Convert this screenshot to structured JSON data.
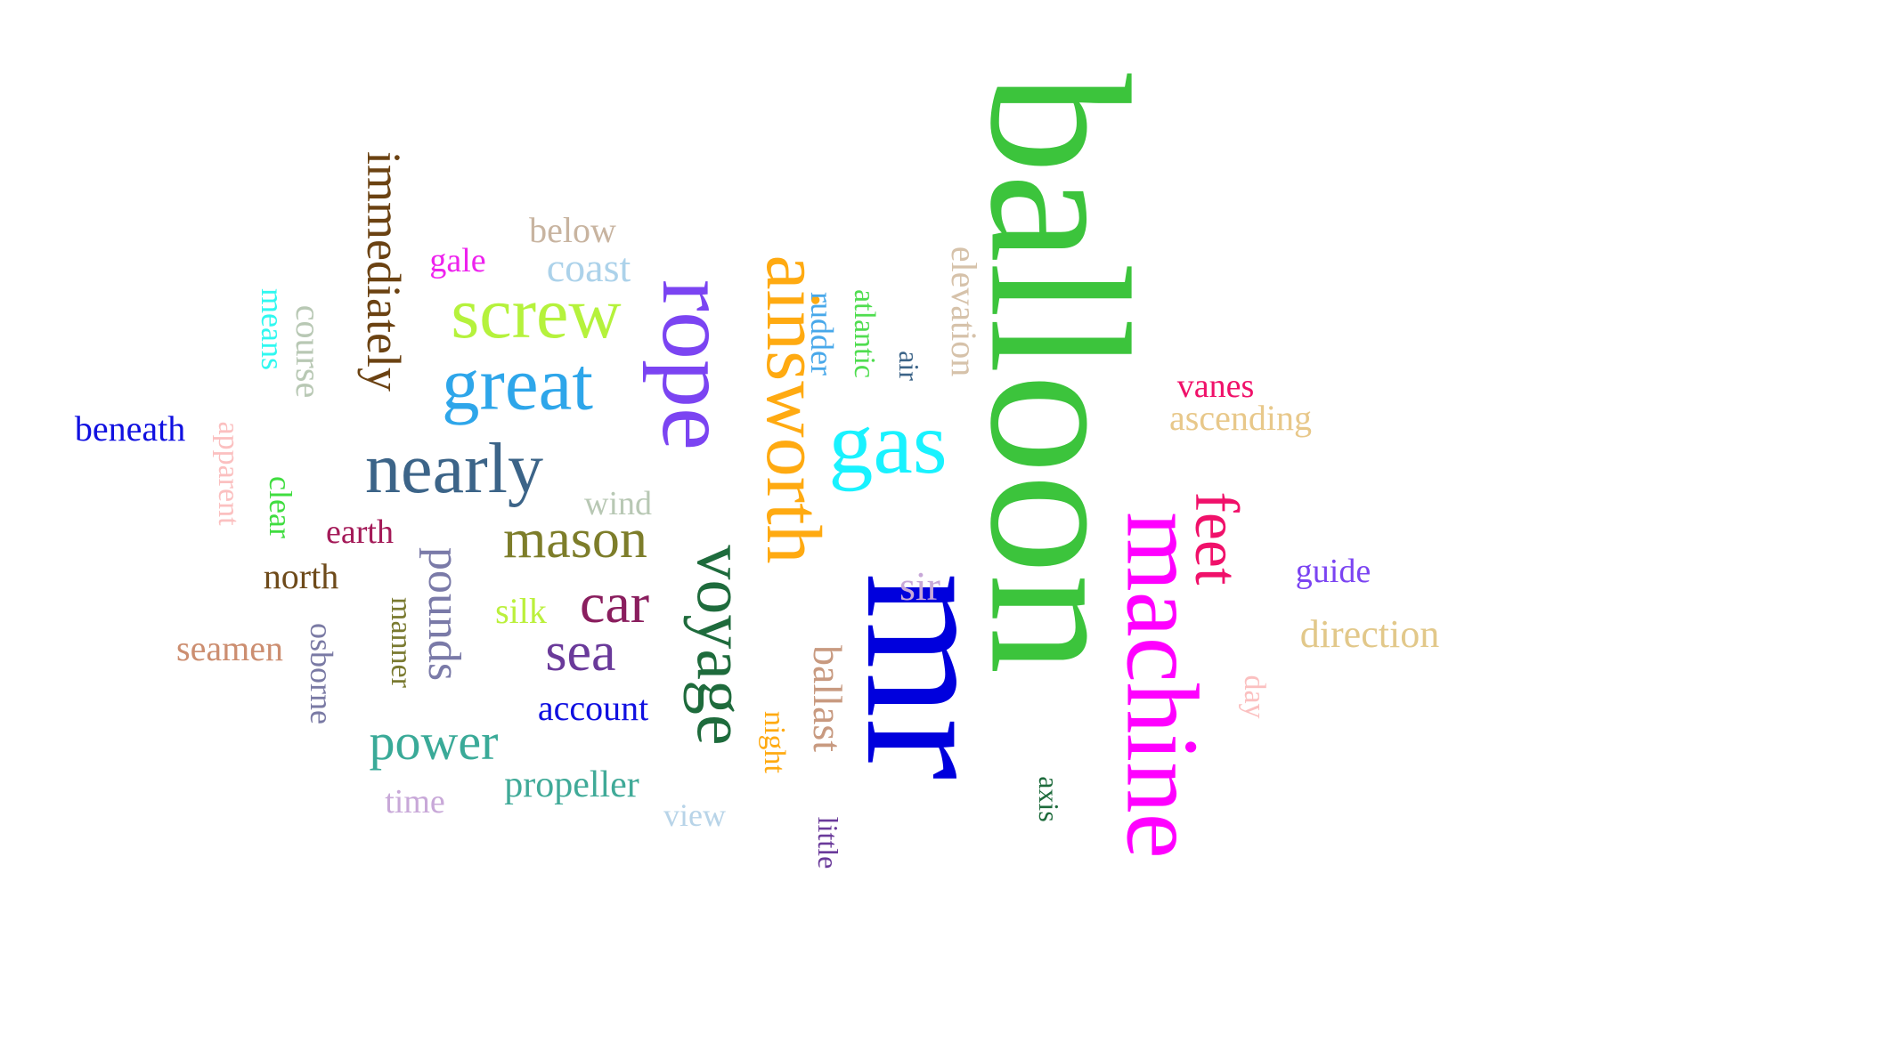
{
  "cloud": {
    "words": [
      {
        "text": "balloon",
        "color": "#3cc43c",
        "rotated": true
      },
      {
        "text": "mr",
        "color": "#0000dd",
        "rotated": true
      },
      {
        "text": "machine",
        "color": "#ff00ff",
        "rotated": true
      },
      {
        "text": "rope",
        "color": "#7b44f2",
        "rotated": true
      },
      {
        "text": "ainsworth",
        "color": "#ffaa11",
        "rotated": true
      },
      {
        "text": "voyage",
        "color": "#1e6b3c",
        "rotated": true
      },
      {
        "text": "feet",
        "color": "#f0116a",
        "rotated": true
      },
      {
        "text": "gas",
        "color": "#19f2ff",
        "rotated": false
      },
      {
        "text": "immediately",
        "color": "#6b4212",
        "rotated": true
      },
      {
        "text": "screw",
        "color": "#b5f23c",
        "rotated": false
      },
      {
        "text": "great",
        "color": "#2ea6ea",
        "rotated": false
      },
      {
        "text": "nearly",
        "color": "#3c6488",
        "rotated": false
      },
      {
        "text": "mason",
        "color": "#7d7d2a",
        "rotated": false
      },
      {
        "text": "car",
        "color": "#8a1e5e",
        "rotated": false
      },
      {
        "text": "sea",
        "color": "#6a3a9a",
        "rotated": false
      },
      {
        "text": "pounds",
        "color": "#7a7aa8",
        "rotated": true
      },
      {
        "text": "power",
        "color": "#3aaa98",
        "rotated": false
      },
      {
        "text": "ballast",
        "color": "#c89a80",
        "rotated": true
      },
      {
        "text": "elevation",
        "color": "#d6c2aa",
        "rotated": true
      },
      {
        "text": "coast",
        "color": "#acd2ea",
        "rotated": false
      },
      {
        "text": "below",
        "color": "#c8b4a0",
        "rotated": false
      },
      {
        "text": "gale",
        "color": "#ee22ee",
        "rotated": false
      },
      {
        "text": "course",
        "color": "#b8c8b4",
        "rotated": true
      },
      {
        "text": "means",
        "color": "#30f8f0",
        "rotated": true
      },
      {
        "text": "beneath",
        "color": "#1010e0",
        "rotated": false
      },
      {
        "text": "apparent",
        "color": "#fbc0c0",
        "rotated": true
      },
      {
        "text": "clear",
        "color": "#40dd40",
        "rotated": true
      },
      {
        "text": "earth",
        "color": "#a41a58",
        "rotated": false
      },
      {
        "text": "north",
        "color": "#6e4a1a",
        "rotated": false
      },
      {
        "text": "seamen",
        "color": "#cc8e70",
        "rotated": false
      },
      {
        "text": "osborne",
        "color": "#7a7aa4",
        "rotated": true
      },
      {
        "text": "manner",
        "color": "#7a7a30",
        "rotated": true
      },
      {
        "text": "silk",
        "color": "#bbf03c",
        "rotated": false
      },
      {
        "text": "wind",
        "color": "#b8c8b4",
        "rotated": false
      },
      {
        "text": "account",
        "color": "#1010e0",
        "rotated": false
      },
      {
        "text": "propeller",
        "color": "#40aa98",
        "rotated": false
      },
      {
        "text": "time",
        "color": "#c8a8d8",
        "rotated": false
      },
      {
        "text": "view",
        "color": "#b8d4e8",
        "rotated": false
      },
      {
        "text": "night",
        "color": "#ffaa11",
        "rotated": true
      },
      {
        "text": "little",
        "color": "#6a3a9a",
        "rotated": true
      },
      {
        "text": "sir",
        "color": "#c8a8d8",
        "rotated": false
      },
      {
        "text": "rudder",
        "color": "#48a8ea",
        "rotated": true
      },
      {
        "text": "atlantic",
        "color": "#50dd50",
        "rotated": true
      },
      {
        "text": "air",
        "color": "#3c6488",
        "rotated": true
      },
      {
        "text": "axis",
        "color": "#1e6b3c",
        "rotated": true
      },
      {
        "text": "vanes",
        "color": "#f0116a",
        "rotated": false
      },
      {
        "text": "ascending",
        "color": "#e8c88a",
        "rotated": false
      },
      {
        "text": "guide",
        "color": "#7b44f2",
        "rotated": false
      },
      {
        "text": "direction",
        "color": "#e2c88a",
        "rotated": false
      },
      {
        "text": "day",
        "color": "#fbc0c0",
        "rotated": true
      }
    ]
  }
}
